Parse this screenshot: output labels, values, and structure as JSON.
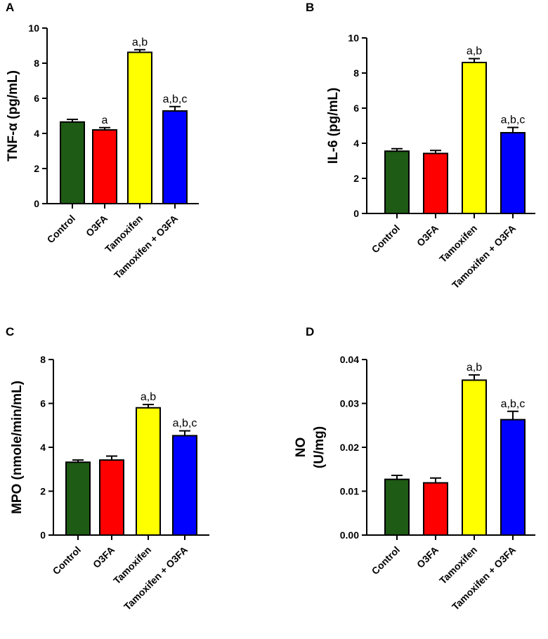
{
  "chart_data": [
    {
      "panel": "A",
      "type": "bar",
      "ylabel": "TNF-α (pg/mL)",
      "categories": [
        "Control",
        "O3FA",
        "Tamoxifen",
        "Tamoxifen + O3FA"
      ],
      "values": [
        4.65,
        4.2,
        8.62,
        5.28
      ],
      "errors": [
        0.15,
        0.13,
        0.15,
        0.25
      ],
      "annotations": [
        "",
        "a",
        "a,b",
        "a,b,c"
      ],
      "colors": [
        "#1e5b14",
        "#ff0000",
        "#ffff00",
        "#0000ff"
      ],
      "ylim": [
        0,
        10
      ],
      "yticks": [
        "0",
        "2",
        "4",
        "6",
        "8",
        "10"
      ]
    },
    {
      "panel": "B",
      "type": "bar",
      "ylabel": "IL-6 (pg/mL)",
      "categories": [
        "Control",
        "O3FA",
        "Tamoxifen",
        "Tamoxifen + O3FA"
      ],
      "values": [
        3.55,
        3.42,
        8.6,
        4.6
      ],
      "errors": [
        0.14,
        0.17,
        0.22,
        0.3
      ],
      "annotations": [
        "",
        "",
        "a,b",
        "a,b,c"
      ],
      "colors": [
        "#1e5b14",
        "#ff0000",
        "#ffff00",
        "#0000ff"
      ],
      "ylim": [
        0,
        10
      ],
      "yticks": [
        "0",
        "2",
        "4",
        "6",
        "8",
        "10"
      ]
    },
    {
      "panel": "C",
      "type": "bar",
      "ylabel": "MPO (nmole/min/mL)",
      "categories": [
        "Control",
        "O3FA",
        "Tamoxifen",
        "Tamoxifen + O3FA"
      ],
      "values": [
        3.32,
        3.42,
        5.8,
        4.53
      ],
      "errors": [
        0.1,
        0.18,
        0.15,
        0.22
      ],
      "annotations": [
        "",
        "",
        "a,b",
        "a,b,c"
      ],
      "colors": [
        "#1e5b14",
        "#ff0000",
        "#ffff00",
        "#0000ff"
      ],
      "ylim": [
        0,
        8
      ],
      "yticks": [
        "0",
        "2",
        "4",
        "6",
        "8"
      ]
    },
    {
      "panel": "D",
      "type": "bar",
      "ylabel": "NO",
      "ylabel2": "(U/mg)",
      "categories": [
        "Control",
        "O3FA",
        "Tamoxifen",
        "Tamoxifen + O3FA"
      ],
      "values": [
        0.0127,
        0.0119,
        0.0353,
        0.0263
      ],
      "errors": [
        0.0009,
        0.0011,
        0.0012,
        0.0019
      ],
      "annotations": [
        "",
        "",
        "a,b",
        "a,b,c"
      ],
      "colors": [
        "#1e5b14",
        "#ff0000",
        "#ffff00",
        "#0000ff"
      ],
      "ylim": [
        0,
        0.04
      ],
      "yticks": [
        "0.00",
        "0.01",
        "0.02",
        "0.03",
        "0.04"
      ]
    }
  ]
}
